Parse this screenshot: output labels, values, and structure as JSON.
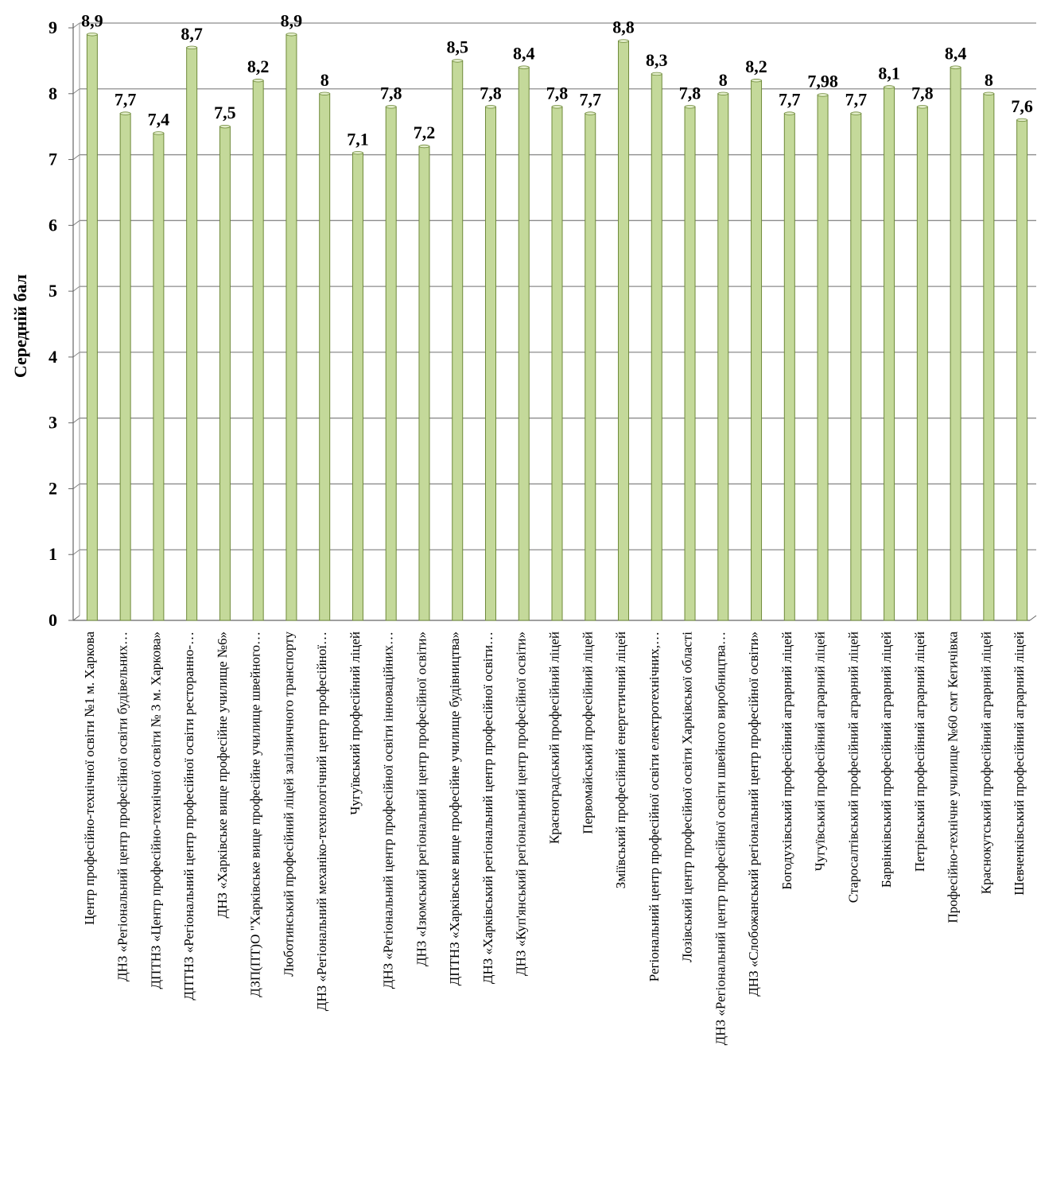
{
  "chart_data": {
    "type": "bar",
    "title": "",
    "xlabel": "",
    "ylabel": "Середній бал",
    "ylim": [
      0,
      9
    ],
    "yticks": [
      "0",
      "1",
      "2",
      "3",
      "4",
      "5",
      "6",
      "7",
      "8",
      "9"
    ],
    "grid": true,
    "bar_color": "#c4d99a",
    "bar_edge_color": "#6f8a3a",
    "categories": [
      "Центр професійно-технічної освіти №1 м. Харкова",
      "ДНЗ «Регіональний центр професійної освіти будівельних…",
      "ДПТНЗ «Центр професійно-технічної освіти № 3 м. Харкова»",
      "ДПТНЗ «Регіональний центр професійної освіти ресторанно-…",
      "ДНЗ «Харківське вище професійне училище №6»",
      "ДЗП(ПТ)О \"Харківське вище професійне училище швейного…",
      "Люботинський професійний ліцей залізничного транспорту",
      "ДНЗ «Регіональний механіко-технологічний центр професійної…",
      "Чугуївський професійний ліцей",
      "ДНЗ «Регіональний центр професійної освіти інноваційних…",
      "ДНЗ «Ізюмський регіональний центр професійної освіти»",
      "ДПТНЗ «Харківське вище професійне училище будівництва»",
      "ДНЗ «Харківський регіональний центр професійної освіти…",
      "ДНЗ «Куп'янський регіональний центр професійної освіти»",
      "Красноградський професійний ліцей",
      "Первомайський професійний ліцей",
      "Зміївський професійний енергетичний ліцей",
      "Регіональний центр професійної освіти електротехнічних,…",
      "Лозівський центр професійної освіти Харківської області",
      "ДНЗ «Регіональний центр професійної освіти швейного виробництва…",
      "ДНЗ «Слобожанський регіональний центр професійної освіти»",
      "Богодухівський професійний аграрний ліцей",
      "Чугуївський професійний аграрний ліцей",
      "Старосалтівський професійний аграрний ліцей",
      "Барвінківський професійний аграрний ліцей",
      "Петрівський професійний аграрний ліцей",
      "Професійно-технічне училище №60 смт Кегичівка",
      "Краснокутський професійний аграрний ліцей",
      "Шевченківський професійний аграрний ліцей"
    ],
    "values": [
      8.9,
      7.7,
      7.4,
      8.7,
      7.5,
      8.2,
      8.9,
      8.0,
      7.1,
      7.8,
      7.2,
      8.5,
      7.8,
      8.4,
      7.8,
      7.7,
      8.8,
      8.3,
      7.8,
      8.0,
      8.2,
      7.7,
      7.98,
      7.7,
      8.1,
      7.8,
      8.4,
      8.0,
      7.6
    ],
    "data_labels": [
      "8,9",
      "7,7",
      "7,4",
      "8,7",
      "7,5",
      "8,2",
      "8,9",
      "8",
      "7,1",
      "7,8",
      "7,2",
      "8,5",
      "7,8",
      "8,4",
      "7,8",
      "7,7",
      "8,8",
      "8,3",
      "7,8",
      "8",
      "8,2",
      "7,7",
      "7,98",
      "7,7",
      "8,1",
      "7,8",
      "8,4",
      "8",
      "7,6"
    ]
  }
}
